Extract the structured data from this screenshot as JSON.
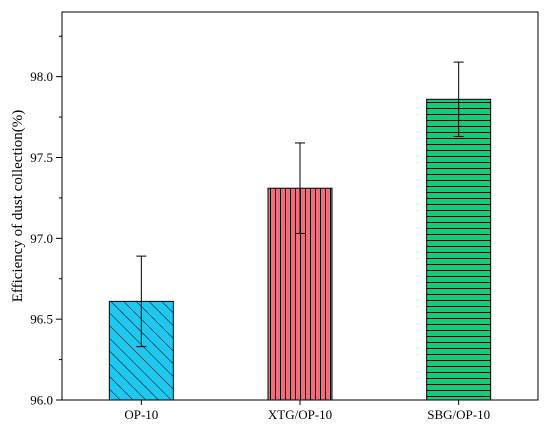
{
  "chart_data": {
    "type": "bar",
    "title": "",
    "xlabel": "",
    "ylabel": "Efficiency of dust collection(%)",
    "ylim": [
      96.0,
      98.4
    ],
    "yticks": [
      "96.0",
      "96.5",
      "97.0",
      "97.5",
      "98.0"
    ],
    "yticks_values": [
      96.0,
      96.5,
      97.0,
      97.5,
      98.0
    ],
    "categories": [
      "OP-10",
      "XTG/OP-10",
      "SBG/OP-10"
    ],
    "values": [
      96.61,
      97.31,
      97.86
    ],
    "error": [
      0.28,
      0.28,
      0.23
    ],
    "fill_colors": [
      "#1ec8f0",
      "#f06d7b",
      "#13cc77"
    ],
    "hatch_patterns": [
      "diagonal",
      "vertical",
      "horizontal"
    ],
    "grid": false,
    "legend": "none"
  }
}
